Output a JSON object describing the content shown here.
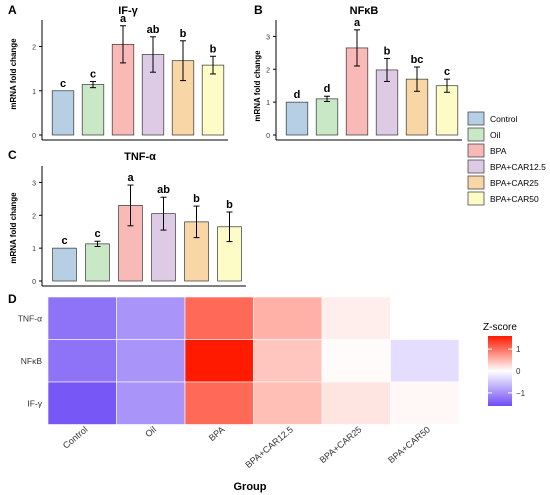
{
  "figure": {
    "legend": [
      {
        "label": "Control",
        "color": "#b7cfe5"
      },
      {
        "label": "Oil",
        "color": "#c9e8c6"
      },
      {
        "label": "BPA",
        "color": "#f8b9b7"
      },
      {
        "label": "BPA+CAR12.5",
        "color": "#ddcbe6"
      },
      {
        "label": "BPA+CAR25",
        "color": "#f9d6a5"
      },
      {
        "label": "BPA+CAR50",
        "color": "#fdfcc6"
      }
    ]
  },
  "chart_data": [
    {
      "panel": "A",
      "type": "bar",
      "title": "IF-γ",
      "xlabel": "",
      "ylabel": "mRNA fold change",
      "ylim": [
        0,
        2.6
      ],
      "yticks": [
        0,
        1,
        2
      ],
      "categories": [
        "Control",
        "Oil",
        "BPA",
        "BPA+CAR12.5",
        "BPA+CAR25",
        "BPA+CAR50"
      ],
      "values": [
        1.0,
        1.14,
        2.05,
        1.82,
        1.68,
        1.58
      ],
      "errors": [
        0.0,
        0.07,
        0.42,
        0.4,
        0.45,
        0.2
      ],
      "labels": [
        "c",
        "c",
        "a",
        "ab",
        "b",
        "b"
      ]
    },
    {
      "panel": "B",
      "type": "bar",
      "title": "NFκB",
      "xlabel": "",
      "ylabel": "mRNA fold change",
      "ylim": [
        0,
        3.5
      ],
      "yticks": [
        0,
        1,
        2,
        3
      ],
      "categories": [
        "Control",
        "Oil",
        "BPA",
        "BPA+CAR12.5",
        "BPA+CAR25",
        "BPA+CAR50"
      ],
      "values": [
        1.0,
        1.1,
        2.65,
        1.98,
        1.7,
        1.5
      ],
      "errors": [
        0.0,
        0.08,
        0.55,
        0.35,
        0.37,
        0.2
      ],
      "labels": [
        "d",
        "d",
        "a",
        "b",
        "bc",
        "c"
      ]
    },
    {
      "panel": "C",
      "type": "bar",
      "title": "TNF-α",
      "xlabel": "",
      "ylabel": "mRNA fold change",
      "ylim": [
        0,
        3.5
      ],
      "yticks": [
        0,
        1,
        2,
        3
      ],
      "categories": [
        "Control",
        "Oil",
        "BPA",
        "BPA+CAR12.5",
        "BPA+CAR25",
        "BPA+CAR50"
      ],
      "values": [
        1.0,
        1.13,
        2.3,
        2.05,
        1.8,
        1.65
      ],
      "errors": [
        0.0,
        0.08,
        0.62,
        0.5,
        0.48,
        0.45
      ],
      "labels": [
        "c",
        "c",
        "a",
        "ab",
        "b",
        "b"
      ]
    },
    {
      "panel": "D",
      "type": "heatmap",
      "title": "",
      "xlabel": "Group",
      "ylabel": "",
      "x": [
        "Control",
        "Oil",
        "BPA",
        "BPA+CAR12.5",
        "BPA+CAR25",
        "BPA+CAR50"
      ],
      "y": [
        "TNF-α",
        "NFκB",
        "IF-γ"
      ],
      "values": [
        [
          -1.25,
          -0.95,
          1.05,
          0.55,
          0.12,
          0.0
        ],
        [
          -1.25,
          -0.95,
          1.6,
          0.4,
          0.03,
          -0.3
        ],
        [
          -1.5,
          -0.95,
          1.05,
          0.45,
          0.18,
          0.05
        ]
      ],
      "colorbar": {
        "title": "Z-score",
        "ticks": [
          1,
          0,
          -1
        ],
        "tick_labels": [
          "1",
          "0",
          "−1"
        ],
        "range": [
          -1.6,
          1.6
        ]
      }
    }
  ]
}
